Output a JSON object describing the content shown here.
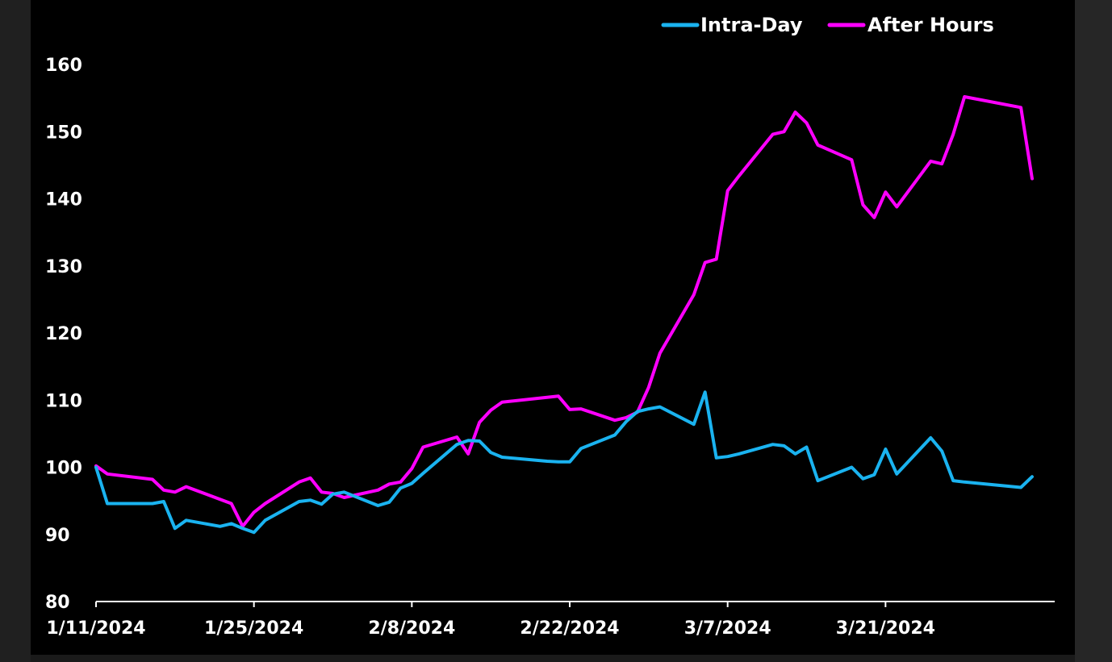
{
  "chart_data": {
    "type": "line",
    "title": "",
    "xlabel": "",
    "ylabel": "",
    "xlim": [
      "2024-01-11",
      "2024-04-05"
    ],
    "ylim": [
      80,
      160
    ],
    "yticks": [
      80,
      90,
      100,
      110,
      120,
      130,
      140,
      150,
      160
    ],
    "xtick_labels": [
      "1/11/2024",
      "1/25/2024",
      "2/8/2024",
      "2/22/2024",
      "3/7/2024",
      "3/21/2024"
    ],
    "xtick_dates": [
      "2024-01-11",
      "2024-01-25",
      "2024-02-08",
      "2024-02-22",
      "2024-03-07",
      "2024-03-21"
    ],
    "grid": false,
    "legend_position": "top-right",
    "series": [
      {
        "name": "Intra-Day",
        "color": "#1ab3f0",
        "points": [
          [
            "2024-01-11",
            100.0
          ],
          [
            "2024-01-12",
            94.6
          ],
          [
            "2024-01-16",
            94.6
          ],
          [
            "2024-01-17",
            94.9
          ],
          [
            "2024-01-18",
            90.9
          ],
          [
            "2024-01-19",
            92.1
          ],
          [
            "2024-01-22",
            91.2
          ],
          [
            "2024-01-23",
            91.6
          ],
          [
            "2024-01-24",
            90.9
          ],
          [
            "2024-01-25",
            90.3
          ],
          [
            "2024-01-26",
            92.1
          ],
          [
            "2024-01-29",
            94.9
          ],
          [
            "2024-01-30",
            95.1
          ],
          [
            "2024-01-31",
            94.5
          ],
          [
            "2024-02-01",
            96.0
          ],
          [
            "2024-02-02",
            96.3
          ],
          [
            "2024-02-05",
            94.3
          ],
          [
            "2024-02-06",
            94.8
          ],
          [
            "2024-02-07",
            96.9
          ],
          [
            "2024-02-08",
            97.6
          ],
          [
            "2024-02-09",
            99.1
          ],
          [
            "2024-02-12",
            103.4
          ],
          [
            "2024-02-13",
            104.0
          ],
          [
            "2024-02-14",
            103.9
          ],
          [
            "2024-02-15",
            102.2
          ],
          [
            "2024-02-16",
            101.5
          ],
          [
            "2024-02-20",
            100.9
          ],
          [
            "2024-02-21",
            100.8
          ],
          [
            "2024-02-22",
            100.8
          ],
          [
            "2024-02-23",
            102.8
          ],
          [
            "2024-02-26",
            104.8
          ],
          [
            "2024-02-27",
            106.8
          ],
          [
            "2024-02-28",
            108.3
          ],
          [
            "2024-02-29",
            108.7
          ],
          [
            "2024-03-01",
            109.0
          ],
          [
            "2024-03-04",
            106.4
          ],
          [
            "2024-03-05",
            111.2
          ],
          [
            "2024-03-06",
            101.4
          ],
          [
            "2024-03-07",
            101.6
          ],
          [
            "2024-03-08",
            102.0
          ],
          [
            "2024-03-11",
            103.4
          ],
          [
            "2024-03-12",
            103.2
          ],
          [
            "2024-03-13",
            102.0
          ],
          [
            "2024-03-14",
            103.0
          ],
          [
            "2024-03-15",
            98.0
          ],
          [
            "2024-03-18",
            100.0
          ],
          [
            "2024-03-19",
            98.3
          ],
          [
            "2024-03-20",
            98.9
          ],
          [
            "2024-03-21",
            102.7
          ],
          [
            "2024-03-22",
            99.0
          ],
          [
            "2024-03-25",
            104.4
          ],
          [
            "2024-03-26",
            102.4
          ],
          [
            "2024-03-27",
            98.0
          ],
          [
            "2024-03-28",
            97.8
          ],
          [
            "2024-04-02",
            97.0
          ],
          [
            "2024-04-03",
            98.6
          ]
        ]
      },
      {
        "name": "After Hours",
        "color": "#ff00ff",
        "points": [
          [
            "2024-01-11",
            100.2
          ],
          [
            "2024-01-12",
            99.0
          ],
          [
            "2024-01-16",
            98.2
          ],
          [
            "2024-01-17",
            96.6
          ],
          [
            "2024-01-18",
            96.3
          ],
          [
            "2024-01-19",
            97.1
          ],
          [
            "2024-01-23",
            94.6
          ],
          [
            "2024-01-24",
            91.2
          ],
          [
            "2024-01-25",
            93.3
          ],
          [
            "2024-01-26",
            94.6
          ],
          [
            "2024-01-29",
            97.8
          ],
          [
            "2024-01-30",
            98.4
          ],
          [
            "2024-01-31",
            96.3
          ],
          [
            "2024-02-01",
            96.1
          ],
          [
            "2024-02-02",
            95.5
          ],
          [
            "2024-02-05",
            96.6
          ],
          [
            "2024-02-06",
            97.5
          ],
          [
            "2024-02-07",
            97.8
          ],
          [
            "2024-02-08",
            99.8
          ],
          [
            "2024-02-09",
            103.0
          ],
          [
            "2024-02-12",
            104.5
          ],
          [
            "2024-02-13",
            102.0
          ],
          [
            "2024-02-14",
            106.7
          ],
          [
            "2024-02-15",
            108.5
          ],
          [
            "2024-02-16",
            109.7
          ],
          [
            "2024-02-21",
            110.6
          ],
          [
            "2024-02-22",
            108.6
          ],
          [
            "2024-02-23",
            108.7
          ],
          [
            "2024-02-26",
            107.0
          ],
          [
            "2024-02-27",
            107.4
          ],
          [
            "2024-02-28",
            108.2
          ],
          [
            "2024-02-29",
            111.9
          ],
          [
            "2024-03-01",
            117.0
          ],
          [
            "2024-03-04",
            125.7
          ],
          [
            "2024-03-05",
            130.5
          ],
          [
            "2024-03-06",
            131.0
          ],
          [
            "2024-03-07",
            141.2
          ],
          [
            "2024-03-08",
            143.4
          ],
          [
            "2024-03-11",
            149.6
          ],
          [
            "2024-03-12",
            150.0
          ],
          [
            "2024-03-13",
            152.9
          ],
          [
            "2024-03-14",
            151.3
          ],
          [
            "2024-03-15",
            148.0
          ],
          [
            "2024-03-18",
            145.8
          ],
          [
            "2024-03-19",
            139.1
          ],
          [
            "2024-03-20",
            137.2
          ],
          [
            "2024-03-21",
            141.0
          ],
          [
            "2024-03-22",
            138.8
          ],
          [
            "2024-03-25",
            145.6
          ],
          [
            "2024-03-26",
            145.2
          ],
          [
            "2024-03-27",
            149.6
          ],
          [
            "2024-03-28",
            155.2
          ],
          [
            "2024-04-02",
            153.6
          ],
          [
            "2024-04-03",
            143.0
          ]
        ]
      }
    ]
  }
}
